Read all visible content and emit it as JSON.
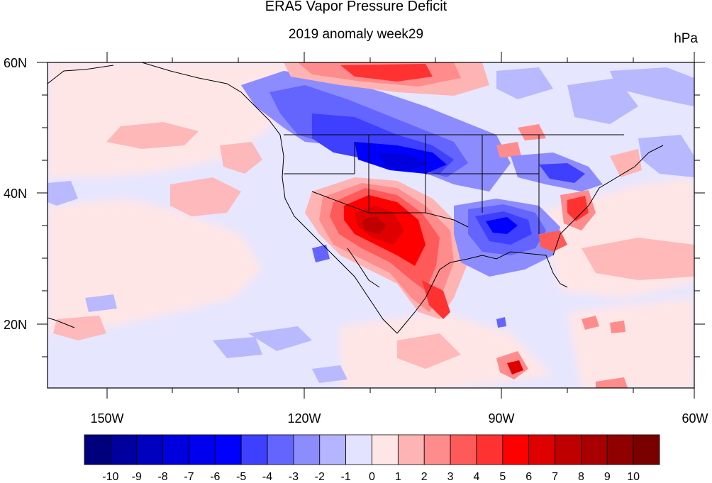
{
  "title": "ERA5 Vapor Pressure Deficit",
  "subtitle": "2019 anomaly week29",
  "units": "hPa",
  "map": {
    "lon_ticks": [
      "150W",
      "120W",
      "90W",
      "60W"
    ],
    "lat_ticks": [
      "60N",
      "40N",
      "20N"
    ]
  },
  "colorbar": {
    "labels": [
      "-10",
      "-9",
      "-8",
      "-7",
      "-6",
      "-5",
      "-4",
      "-3",
      "-2",
      "-1",
      "0",
      "1",
      "2",
      "3",
      "4",
      "5",
      "6",
      "7",
      "8",
      "9",
      "10"
    ],
    "colors": [
      "#00007f",
      "#00009f",
      "#0000bf",
      "#0000df",
      "#0000ef",
      "#0000ff",
      "#3f3fff",
      "#6464ff",
      "#8c8cff",
      "#b4b4ff",
      "#e3e3ff",
      "#ffe6e6",
      "#ffb4b4",
      "#ff8c8c",
      "#ff5a5a",
      "#ff3232",
      "#ff0000",
      "#df0000",
      "#bf0000",
      "#a80000",
      "#900000",
      "#7a0000"
    ]
  }
}
